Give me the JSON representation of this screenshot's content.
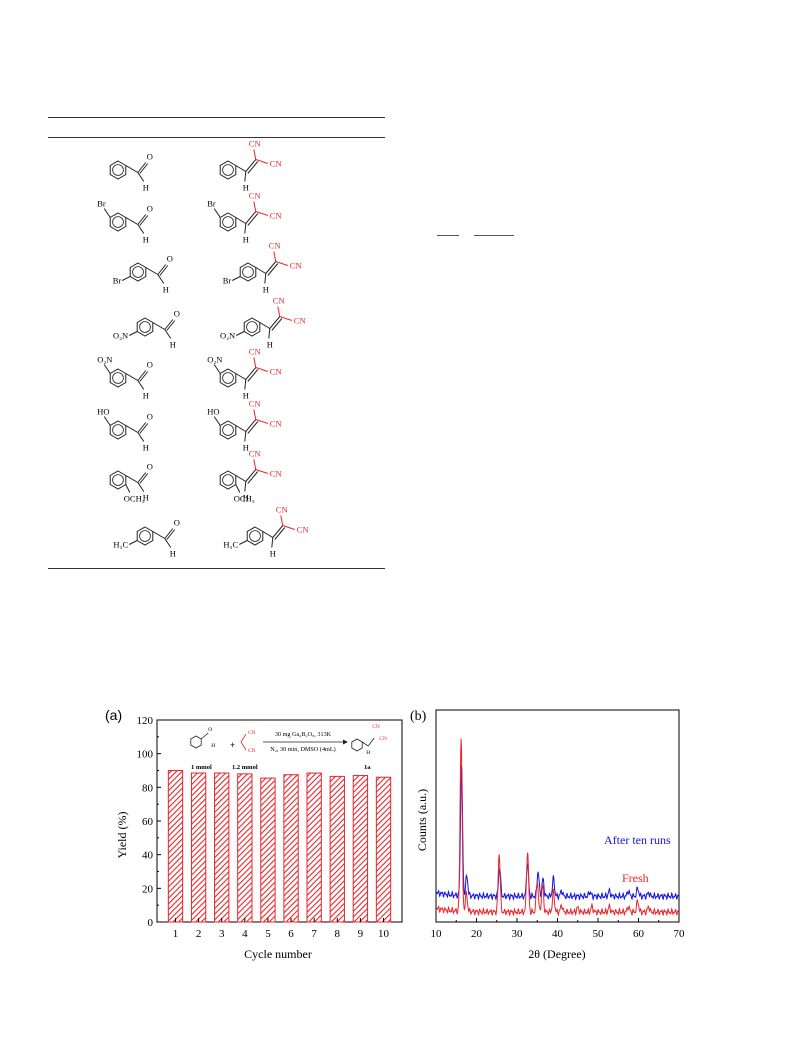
{
  "table": {
    "rows": [
      {
        "reactant": {
          "ring": "none",
          "subs": [],
          "ald": "CHO"
        },
        "product": {
          "ring": "none",
          "subs": []
        }
      },
      {
        "reactant": {
          "subs": [
            {
              "pos": "meta",
              "label": "Br"
            }
          ]
        },
        "product": {
          "subs": [
            {
              "pos": "meta",
              "label": "Br"
            }
          ]
        }
      },
      {
        "reactant": {
          "subs": [
            {
              "pos": "para",
              "label": "Br"
            }
          ]
        },
        "product": {
          "subs": [
            {
              "pos": "para",
              "label": "Br"
            }
          ]
        }
      },
      {
        "reactant": {
          "subs": [
            {
              "pos": "para",
              "label": "O₂N"
            }
          ]
        },
        "product": {
          "subs": [
            {
              "pos": "para",
              "label": "O₂N"
            }
          ]
        }
      },
      {
        "reactant": {
          "subs": [
            {
              "pos": "meta",
              "label": "O₂N"
            }
          ]
        },
        "product": {
          "subs": [
            {
              "pos": "meta",
              "label": "O₂N"
            }
          ]
        }
      },
      {
        "reactant": {
          "subs": [
            {
              "pos": "meta",
              "label": "HO"
            }
          ]
        },
        "product": {
          "subs": [
            {
              "pos": "meta",
              "label": "HO"
            }
          ]
        }
      },
      {
        "reactant": {
          "subs": [
            {
              "pos": "ortho",
              "label": "OCH₃"
            }
          ]
        },
        "product": {
          "subs": [
            {
              "pos": "ortho",
              "label": "OCH₃"
            }
          ]
        }
      },
      {
        "reactant": {
          "subs": [
            {
              "pos": "para",
              "label": "H₃C"
            }
          ]
        },
        "product": {
          "subs": [
            {
              "pos": "para",
              "label": "H₃C"
            }
          ]
        }
      }
    ],
    "labels": {
      "O": "O",
      "H": "H",
      "CN": "CN"
    }
  },
  "chart_data": [
    {
      "panel": "(a)",
      "type": "bar",
      "xlabel": "Cycle number",
      "ylabel": "Yield (%)",
      "categories": [
        "1",
        "2",
        "3",
        "4",
        "5",
        "6",
        "7",
        "8",
        "9",
        "10"
      ],
      "values": [
        90,
        88.5,
        88.5,
        88,
        85.5,
        87.5,
        88.5,
        86.5,
        87,
        86
      ],
      "ylim": [
        0,
        120
      ],
      "yticks": [
        "0",
        "20",
        "40",
        "60",
        "80",
        "100",
        "120"
      ],
      "bar_color": "#e8262b",
      "inset": {
        "amount_1": "1 mmol",
        "amount_2": "1.2 mmol",
        "conditions_top": "30 mg Ga₄B₂O₉, 313K",
        "conditions_bottom": "N₂, 30 min, DMSO (4mL)",
        "product_label": "1a",
        "plus": "+",
        "cn": "CN",
        "h": "H",
        "o": "O"
      }
    },
    {
      "panel": "(b)",
      "type": "line",
      "xlabel": "2θ (Degree)",
      "ylabel": "Counts (a.u.)",
      "xlim": [
        10,
        70
      ],
      "xticks": [
        "10",
        "20",
        "30",
        "40",
        "50",
        "60",
        "70"
      ],
      "series": [
        {
          "name": "After ten runs",
          "color": "#1515e0",
          "baseline": 0.35,
          "peaks": [
            [
              16.3,
              2.9
            ],
            [
              17.6,
              0.45
            ],
            [
              25.7,
              0.65
            ],
            [
              32.6,
              0.75
            ],
            [
              35.2,
              0.55
            ],
            [
              36.4,
              0.38
            ],
            [
              39.0,
              0.4
            ],
            [
              41.0,
              0.12
            ],
            [
              48.0,
              0.1
            ],
            [
              52.8,
              0.12
            ],
            [
              57.5,
              0.12
            ],
            [
              59.8,
              0.18
            ],
            [
              62.5,
              0.08
            ]
          ]
        },
        {
          "name": "Fresh",
          "color": "#e8262b",
          "baseline": 0.0,
          "peaks": [
            [
              16.2,
              3.9
            ],
            [
              17.5,
              0.4
            ],
            [
              25.6,
              1.3
            ],
            [
              32.6,
              1.35
            ],
            [
              35.0,
              0.7
            ],
            [
              36.3,
              0.6
            ],
            [
              39.0,
              0.45
            ],
            [
              41.0,
              0.15
            ],
            [
              45.0,
              0.1
            ],
            [
              48.5,
              0.12
            ],
            [
              52.8,
              0.12
            ],
            [
              57.5,
              0.12
            ],
            [
              59.8,
              0.25
            ],
            [
              62.5,
              0.12
            ]
          ]
        }
      ]
    }
  ]
}
